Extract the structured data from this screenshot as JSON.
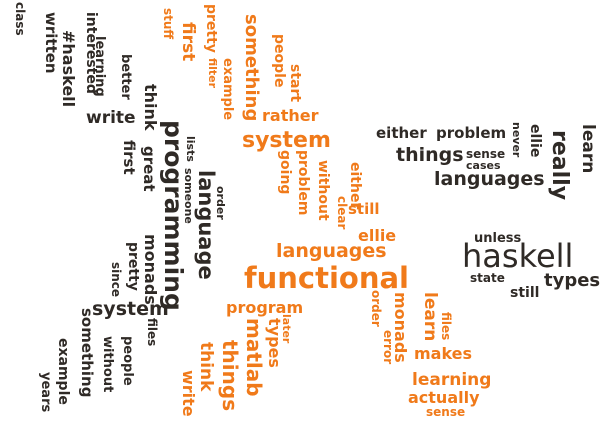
{
  "colors": {
    "dark": "#2f2a26",
    "orange": "#f07a1a"
  },
  "words": [
    "class",
    "written",
    "#haskell",
    "interested",
    "learning",
    "better",
    "write",
    "think",
    "first",
    "great",
    "lists",
    "someone",
    "programming",
    "language",
    "order",
    "monads",
    "pretty",
    "since",
    "system",
    "files",
    "something",
    "without",
    "example",
    "people",
    "years",
    "stuff",
    "first",
    "pretty",
    "filter",
    "example",
    "something",
    "people",
    "start",
    "rather",
    "system",
    "going",
    "problem",
    "without",
    "clear",
    "either",
    "still",
    "ellie",
    "languages",
    "functional",
    "program",
    "later",
    "types",
    "matlab",
    "things",
    "think",
    "write",
    "order",
    "monads",
    "error",
    "learn",
    "files",
    "makes",
    "learning",
    "actually",
    "sense",
    "either",
    "problem",
    "never",
    "sense",
    "cases",
    "ellie",
    "really",
    "learn",
    "things",
    "languages",
    "unless",
    "haskell",
    "state",
    "still",
    "types"
  ]
}
